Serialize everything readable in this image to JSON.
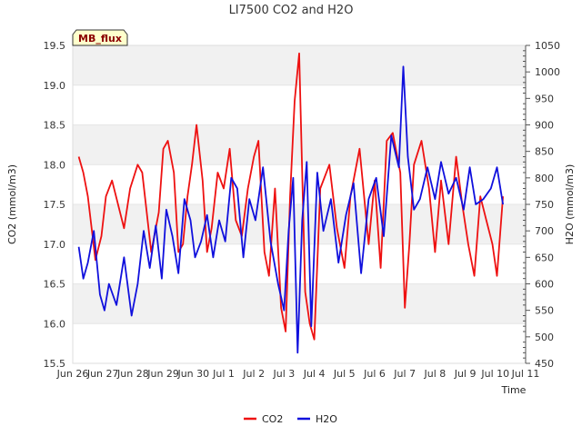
{
  "chart_data": {
    "type": "line",
    "title": "LI7500 CO2 and H2O",
    "xlabel": "Time",
    "ylabel_left": "CO2 (mmol/m3)",
    "ylabel_right": "H2O (mmol/m3)",
    "badge": "MB_flux",
    "x_unit": "days (Jun 26 = 0)",
    "xlim": [
      0,
      15
    ],
    "x_ticks": [
      {
        "x": 0,
        "label": "Jun 26"
      },
      {
        "x": 1,
        "label": "Jun 27"
      },
      {
        "x": 2,
        "label": "Jun 28"
      },
      {
        "x": 3,
        "label": "Jun 29"
      },
      {
        "x": 4,
        "label": "Jun 30"
      },
      {
        "x": 5,
        "label": "Jul 1"
      },
      {
        "x": 6,
        "label": "Jul 2"
      },
      {
        "x": 7,
        "label": "Jul 3"
      },
      {
        "x": 8,
        "label": "Jul 4"
      },
      {
        "x": 9,
        "label": "Jul 5"
      },
      {
        "x": 10,
        "label": "Jul 6"
      },
      {
        "x": 11,
        "label": "Jul 7"
      },
      {
        "x": 12,
        "label": "Jul 8"
      },
      {
        "x": 13,
        "label": "Jul 9"
      },
      {
        "x": 14,
        "label": "Jul 10"
      },
      {
        "x": 15,
        "label": "Jul 11"
      }
    ],
    "ylim_left": [
      15.5,
      19.5
    ],
    "y_ticks_left": [
      "15.5",
      "16.0",
      "16.5",
      "17.0",
      "17.5",
      "18.0",
      "18.5",
      "19.0",
      "19.5"
    ],
    "ylim_right": [
      450,
      1050
    ],
    "y_ticks_right": [
      "450",
      "500",
      "550",
      "600",
      "650",
      "700",
      "750",
      "800",
      "850",
      "900",
      "950",
      "1000",
      "1050"
    ],
    "grid": "horizontal bands",
    "legend_position": "bottom-center",
    "series": [
      {
        "name": "CO2",
        "axis": "left",
        "color": "#ee1111",
        "x": [
          0.2,
          0.35,
          0.5,
          0.75,
          0.95,
          1.1,
          1.3,
          1.5,
          1.7,
          1.9,
          2.15,
          2.3,
          2.6,
          2.85,
          3.0,
          3.15,
          3.35,
          3.5,
          3.65,
          3.8,
          3.95,
          4.1,
          4.3,
          4.45,
          4.6,
          4.8,
          5.0,
          5.2,
          5.4,
          5.6,
          5.8,
          6.0,
          6.15,
          6.35,
          6.5,
          6.7,
          6.9,
          7.05,
          7.2,
          7.35,
          7.5,
          7.7,
          7.85,
          8.0,
          8.2,
          8.5,
          8.75,
          9.0,
          9.2,
          9.5,
          9.8,
          10.0,
          10.2,
          10.4,
          10.6,
          10.85,
          11.0,
          11.15,
          11.3,
          11.55,
          11.8,
          12.0,
          12.2,
          12.45,
          12.7,
          12.9,
          13.1,
          13.3,
          13.5,
          13.7,
          13.9,
          14.05,
          14.25
        ],
        "y": [
          18.1,
          17.9,
          17.6,
          16.8,
          17.1,
          17.6,
          17.8,
          17.5,
          17.2,
          17.7,
          18.0,
          17.9,
          16.9,
          17.4,
          18.2,
          18.3,
          17.9,
          16.9,
          17.0,
          17.6,
          18.0,
          18.5,
          17.8,
          16.9,
          17.2,
          17.9,
          17.7,
          18.2,
          17.3,
          17.1,
          17.7,
          18.1,
          18.3,
          16.9,
          16.6,
          17.7,
          16.2,
          15.9,
          17.6,
          18.8,
          19.4,
          16.4,
          16.0,
          15.8,
          17.7,
          18.0,
          17.2,
          16.7,
          17.6,
          18.2,
          17.0,
          17.8,
          16.7,
          18.3,
          18.4,
          17.9,
          16.2,
          17.0,
          18.0,
          18.3,
          17.7,
          16.9,
          17.8,
          17.0,
          18.1,
          17.5,
          17.0,
          16.6,
          17.6,
          17.3,
          17.0,
          16.6,
          17.6
        ]
      },
      {
        "name": "H2O",
        "axis": "right",
        "color": "#1010dd",
        "x": [
          0.2,
          0.35,
          0.5,
          0.7,
          0.9,
          1.05,
          1.2,
          1.45,
          1.7,
          1.95,
          2.15,
          2.35,
          2.55,
          2.75,
          2.95,
          3.1,
          3.3,
          3.5,
          3.7,
          3.9,
          4.05,
          4.25,
          4.45,
          4.65,
          4.85,
          5.05,
          5.25,
          5.45,
          5.65,
          5.85,
          6.05,
          6.3,
          6.55,
          6.8,
          7.0,
          7.15,
          7.3,
          7.45,
          7.6,
          7.75,
          7.9,
          8.1,
          8.3,
          8.55,
          8.8,
          9.05,
          9.3,
          9.55,
          9.8,
          10.05,
          10.3,
          10.55,
          10.8,
          10.95,
          11.1,
          11.3,
          11.5,
          11.75,
          12.0,
          12.2,
          12.45,
          12.7,
          12.95,
          13.15,
          13.35,
          13.6,
          13.85,
          14.05,
          14.25
        ],
        "y": [
          670,
          610,
          640,
          700,
          580,
          550,
          600,
          560,
          650,
          540,
          600,
          700,
          630,
          710,
          610,
          740,
          690,
          620,
          760,
          720,
          650,
          680,
          730,
          650,
          720,
          680,
          800,
          780,
          650,
          760,
          720,
          820,
          680,
          600,
          550,
          700,
          800,
          470,
          720,
          830,
          520,
          810,
          700,
          760,
          640,
          730,
          790,
          620,
          760,
          800,
          690,
          880,
          820,
          1010,
          840,
          740,
          760,
          820,
          760,
          830,
          770,
          800,
          740,
          820,
          750,
          760,
          780,
          820,
          750
        ]
      }
    ]
  }
}
